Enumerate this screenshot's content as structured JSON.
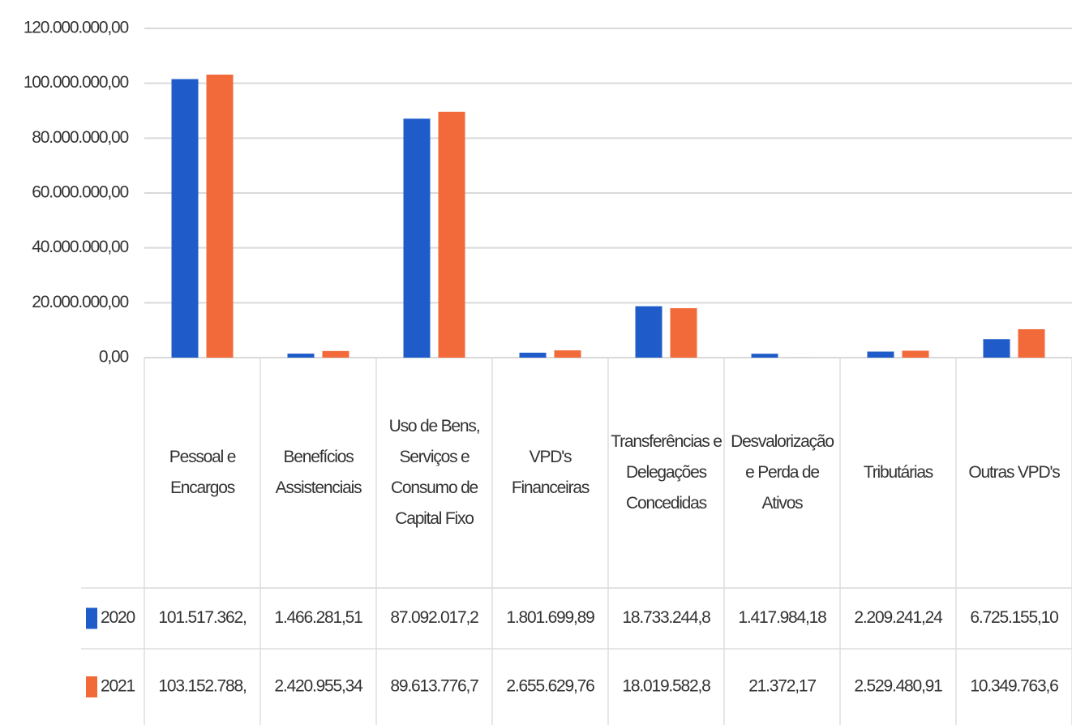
{
  "chart_data": {
    "type": "bar",
    "categories": [
      "Pessoal e Encargos",
      "Benefícios Assistenciais",
      "Uso de Bens, Serviços e Consumo de Capital Fixo",
      "VPD's Financeiras",
      "Transferências e Delegações Concedidas",
      "Desvalorização e Perda de Ativos",
      "Tributárias",
      "Outras VPD's"
    ],
    "series": [
      {
        "name": "2020",
        "color": "#1f5cc9",
        "values": [
          101517362,
          1466281.51,
          87092017.2,
          1801699.89,
          18733244.8,
          1417984.18,
          2209241.24,
          6725155.1
        ],
        "value_labels": [
          "101.517.362,",
          "1.466.281,51",
          "87.092.017,2",
          "1.801.699,89",
          "18.733.244,8",
          "1.417.984,18",
          "2.209.241,24",
          "6.725.155,10"
        ]
      },
      {
        "name": "2021",
        "color": "#f2693a",
        "values": [
          103152788,
          2420955.34,
          89613776.7,
          2655629.76,
          18019582.8,
          21372.17,
          2529480.91,
          10349763.6
        ],
        "value_labels": [
          "103.152.788,",
          "2.420.955,34",
          "89.613.776,7",
          "2.655.629,76",
          "18.019.582,8",
          "21.372,17",
          "2.529.480,91",
          "10.349.763,6"
        ]
      }
    ],
    "ylim": [
      0,
      120000000
    ],
    "yticks": [
      {
        "value": 0,
        "label": "0,00"
      },
      {
        "value": 20000000,
        "label": "20.000.000,00"
      },
      {
        "value": 40000000,
        "label": "40.000.000,00"
      },
      {
        "value": 60000000,
        "label": "60.000.000,00"
      },
      {
        "value": 80000000,
        "label": "80.000.000,00"
      },
      {
        "value": 100000000,
        "label": "100.000.000,00"
      },
      {
        "value": 120000000,
        "label": "120.000.000,00"
      }
    ],
    "grid": true
  }
}
